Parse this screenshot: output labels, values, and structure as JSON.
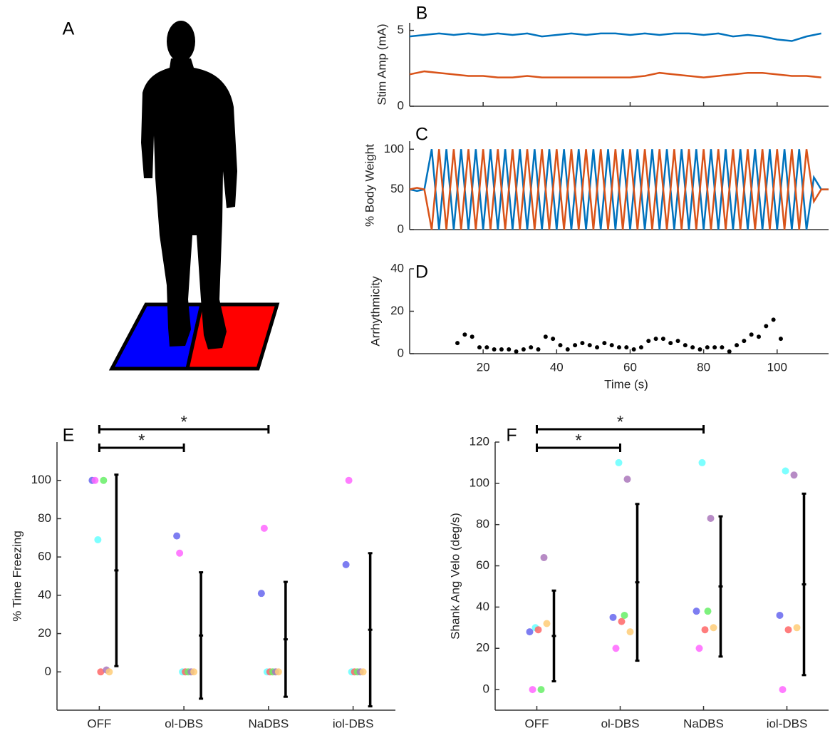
{
  "chart_data": [
    {
      "type": "illustration",
      "panel_label": "A"
    },
    {
      "type": "line",
      "panel_label": "B",
      "ylabel": "Stim Amp (mA)",
      "x": [
        0,
        4,
        8,
        12,
        16,
        20,
        24,
        28,
        32,
        36,
        40,
        44,
        48,
        52,
        56,
        60,
        64,
        68,
        72,
        76,
        80,
        84,
        88,
        92,
        96,
        100,
        104,
        108,
        112
      ],
      "xlim": [
        0,
        114
      ],
      "xticks": [
        20,
        40,
        60,
        80,
        100
      ],
      "ylim": [
        0,
        5.5
      ],
      "yticks": [
        0,
        5
      ],
      "series": [
        {
          "color": "#0072bd",
          "values": [
            4.6,
            4.7,
            4.8,
            4.7,
            4.8,
            4.7,
            4.8,
            4.7,
            4.8,
            4.6,
            4.7,
            4.8,
            4.7,
            4.8,
            4.8,
            4.7,
            4.8,
            4.7,
            4.8,
            4.8,
            4.7,
            4.8,
            4.6,
            4.7,
            4.6,
            4.4,
            4.3,
            4.6,
            4.8
          ]
        },
        {
          "color": "#d95319",
          "values": [
            2.1,
            2.3,
            2.2,
            2.1,
            2.0,
            2.0,
            1.9,
            1.9,
            2.0,
            1.9,
            1.9,
            1.9,
            1.9,
            1.9,
            1.9,
            1.9,
            2.0,
            2.2,
            2.1,
            2.0,
            1.9,
            2.0,
            2.1,
            2.2,
            2.2,
            2.1,
            2.0,
            2.0,
            1.9
          ]
        }
      ]
    },
    {
      "type": "line",
      "panel_label": "C",
      "ylabel": "% Body Weight",
      "x": [
        0,
        2,
        4,
        6,
        8,
        10,
        12,
        14,
        16,
        18,
        20,
        22,
        24,
        26,
        28,
        30,
        32,
        34,
        36,
        38,
        40,
        42,
        44,
        46,
        48,
        50,
        52,
        54,
        56,
        58,
        60,
        62,
        64,
        66,
        68,
        70,
        72,
        74,
        76,
        78,
        80,
        82,
        84,
        86,
        88,
        90,
        92,
        94,
        96,
        98,
        100,
        102,
        104,
        106,
        108,
        110,
        112,
        114
      ],
      "xlim": [
        0,
        114
      ],
      "xticks": [
        20,
        40,
        60,
        80,
        100
      ],
      "ylim": [
        0,
        110
      ],
      "yticks": [
        0,
        50,
        100
      ],
      "series": [
        {
          "color": "#0072bd",
          "values": [
            50,
            48,
            50,
            100,
            0,
            100,
            0,
            100,
            0,
            100,
            0,
            100,
            0,
            100,
            0,
            100,
            0,
            100,
            0,
            100,
            0,
            100,
            0,
            100,
            0,
            100,
            0,
            100,
            0,
            100,
            0,
            100,
            0,
            100,
            0,
            100,
            0,
            100,
            0,
            100,
            0,
            100,
            0,
            100,
            0,
            100,
            0,
            100,
            0,
            100,
            0,
            100,
            0,
            100,
            0,
            65,
            50,
            50
          ]
        },
        {
          "color": "#d95319",
          "values": [
            50,
            52,
            50,
            0,
            100,
            0,
            100,
            0,
            100,
            0,
            100,
            0,
            100,
            0,
            100,
            0,
            100,
            0,
            100,
            0,
            100,
            0,
            100,
            0,
            100,
            0,
            100,
            0,
            100,
            0,
            100,
            0,
            100,
            0,
            100,
            0,
            100,
            0,
            100,
            0,
            100,
            0,
            100,
            0,
            100,
            0,
            100,
            0,
            100,
            0,
            100,
            0,
            100,
            0,
            100,
            35,
            50,
            50
          ]
        }
      ]
    },
    {
      "type": "scatter",
      "panel_label": "D",
      "ylabel": "Arrhythmicity",
      "xlabel": "Time (s)",
      "x": [
        13,
        15,
        17,
        19,
        21,
        23,
        25,
        27,
        29,
        31,
        33,
        35,
        37,
        39,
        41,
        43,
        45,
        47,
        49,
        51,
        53,
        55,
        57,
        59,
        61,
        63,
        65,
        67,
        69,
        71,
        73,
        75,
        77,
        79,
        81,
        83,
        85,
        87,
        89,
        91,
        93,
        95,
        97,
        99,
        101
      ],
      "values": [
        5,
        9,
        8,
        3,
        3,
        2,
        2,
        2,
        1,
        2,
        3,
        2,
        8,
        7,
        4,
        2,
        4,
        5,
        4,
        3,
        5,
        4,
        3,
        3,
        2,
        3,
        6,
        7,
        7,
        5,
        6,
        4,
        3,
        2,
        3,
        3,
        3,
        1,
        4,
        6,
        9,
        8,
        13,
        16,
        7
      ],
      "color": "#000000",
      "xlim": [
        0,
        114
      ],
      "xticks": [
        20,
        40,
        60,
        80,
        100
      ],
      "ylim": [
        0,
        40
      ],
      "yticks": [
        0,
        20,
        40
      ]
    },
    {
      "type": "dots",
      "panel_label": "E",
      "ylabel": "% Time Freezing",
      "categories": [
        "OFF",
        "ol-DBS",
        "NaDBS",
        "iol-DBS"
      ],
      "ylim": [
        -20,
        120
      ],
      "yticks": [
        0,
        20,
        40,
        60,
        80,
        100
      ],
      "series": [
        {
          "color": "#6666ee",
          "values": [
            100,
            71,
            41,
            56
          ]
        },
        {
          "color": "#ff66ff",
          "values": [
            100,
            62,
            75,
            100
          ]
        },
        {
          "color": "#66ffff",
          "values": [
            69,
            0,
            0,
            0
          ]
        },
        {
          "color": "#ff6666",
          "values": [
            0,
            0,
            0,
            0
          ]
        },
        {
          "color": "#66ee66",
          "values": [
            100,
            0,
            0,
            0
          ]
        },
        {
          "color": "#aa77bb",
          "values": [
            1,
            0,
            0,
            0
          ]
        },
        {
          "color": "#ffcc77",
          "values": [
            0,
            0,
            0,
            0
          ]
        }
      ],
      "means": [
        53,
        19,
        17,
        22
      ],
      "errors": [
        50,
        33,
        30,
        40
      ],
      "significance": [
        {
          "from": 0,
          "to": 1,
          "label": "*"
        },
        {
          "from": 0,
          "to": 2,
          "label": "*"
        }
      ]
    },
    {
      "type": "dots",
      "panel_label": "F",
      "ylabel": "Shank Ang Velo (deg/s)",
      "categories": [
        "OFF",
        "ol-DBS",
        "NaDBS",
        "iol-DBS"
      ],
      "ylim": [
        -10,
        120
      ],
      "yticks": [
        0,
        20,
        40,
        60,
        80,
        100,
        120
      ],
      "series": [
        {
          "color": "#6666ee",
          "values": [
            28,
            35,
            38,
            36
          ]
        },
        {
          "color": "#ff66ff",
          "values": [
            0,
            20,
            20,
            0
          ]
        },
        {
          "color": "#66ffff",
          "values": [
            30,
            110,
            110,
            106
          ]
        },
        {
          "color": "#ff6666",
          "values": [
            29,
            33,
            29,
            29
          ]
        },
        {
          "color": "#66ee66",
          "values": [
            0,
            36,
            38,
            null
          ]
        },
        {
          "color": "#aa77bb",
          "values": [
            64,
            102,
            83,
            104
          ]
        },
        {
          "color": "#ffcc77",
          "values": [
            32,
            28,
            30,
            30
          ]
        }
      ],
      "means": [
        26,
        52,
        50,
        51
      ],
      "errors": [
        22,
        38,
        34,
        44
      ],
      "significance": [
        {
          "from": 0,
          "to": 1,
          "label": "*"
        },
        {
          "from": 0,
          "to": 2,
          "label": "*"
        }
      ]
    }
  ]
}
